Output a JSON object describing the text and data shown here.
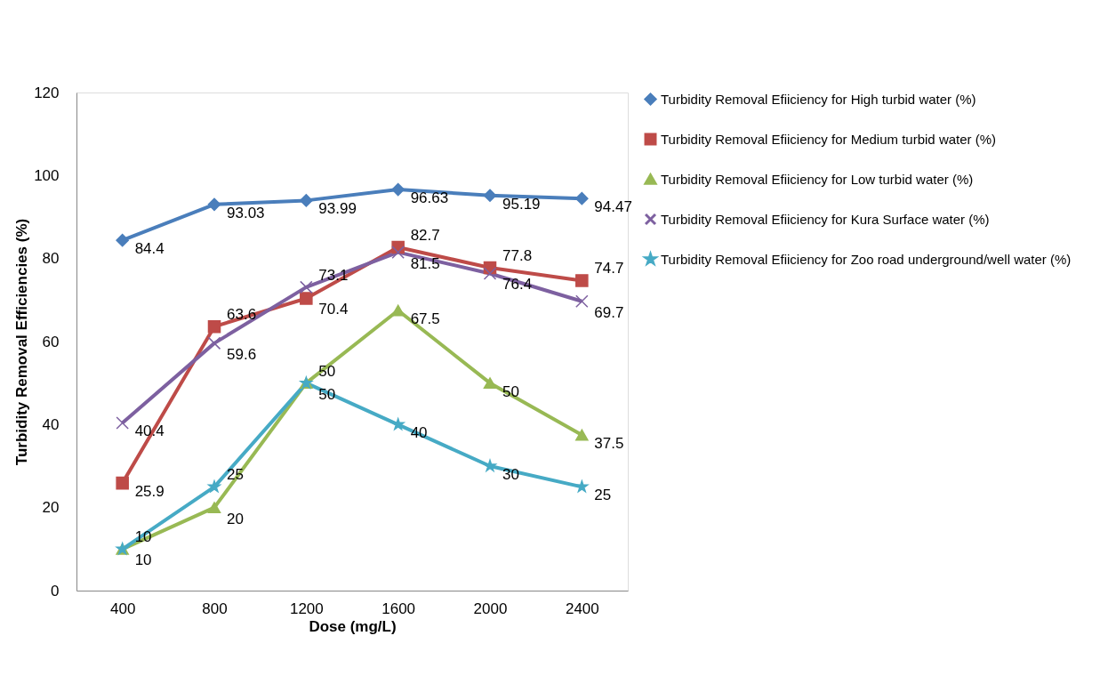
{
  "chart_data": {
    "type": "line",
    "xlabel": "Dose (mg/L)",
    "ylabel": "Turbidity Removal Efficiencies (%)",
    "categories": [
      "400",
      "800",
      "1200",
      "1600",
      "2000",
      "2400"
    ],
    "ylim": [
      0,
      120
    ],
    "yticks": [
      0,
      20,
      40,
      60,
      80,
      100,
      120
    ],
    "grid": false,
    "legend": "right",
    "data_labels": true,
    "series": [
      {
        "name": "Turbidity Removal Efiiciency for High turbid water (%)",
        "color": "#4a7ebb",
        "marker": "diamond",
        "values": [
          84.4,
          93.03,
          93.99,
          96.63,
          95.19,
          94.47
        ]
      },
      {
        "name": "Turbidity Removal Efiiciency for Medium turbid water (%)",
        "color": "#be4b48",
        "marker": "square",
        "values": [
          25.9,
          63.6,
          70.4,
          82.7,
          77.8,
          74.7
        ]
      },
      {
        "name": "Turbidity Removal Efiiciency for Low turbid water (%)",
        "color": "#98b954",
        "marker": "triangle",
        "values": [
          10,
          20,
          50,
          67.5,
          50,
          37.5
        ]
      },
      {
        "name": "Turbidity Removal Efiiciency for Kura Surface water (%)",
        "color": "#7d60a0",
        "marker": "cross",
        "values": [
          40.4,
          59.6,
          73.1,
          81.5,
          76.4,
          69.7
        ]
      },
      {
        "name": "Turbidity Removal Efiiciency for Zoo road underground/well water (%)",
        "color": "#46aac5",
        "marker": "star",
        "values": [
          10,
          25,
          50,
          40,
          30,
          25
        ]
      }
    ]
  }
}
